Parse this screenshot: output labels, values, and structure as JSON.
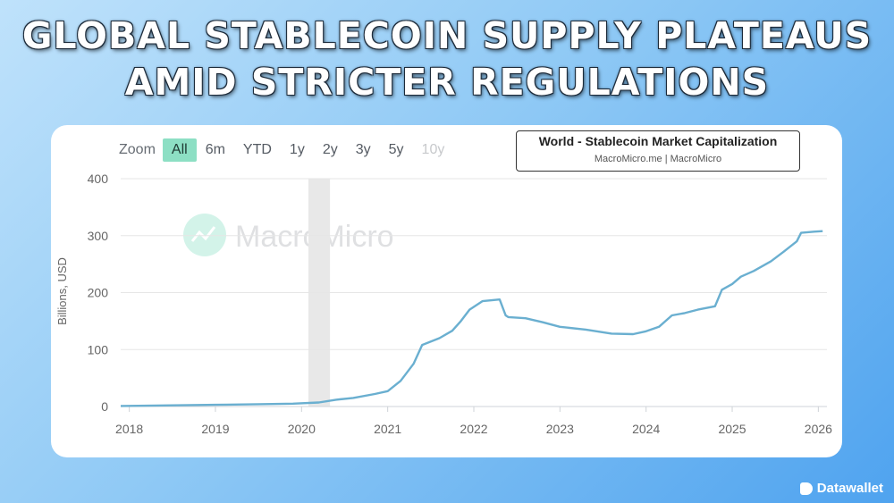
{
  "headline": {
    "line1": "GLOBAL STABLECOIN SUPPLY PLATEAUS",
    "line2": "AMID STRICTER REGULATIONS"
  },
  "zoom": {
    "label": "Zoom",
    "buttons": [
      "All",
      "6m",
      "YTD",
      "1y",
      "2y",
      "3y",
      "5y",
      "10y"
    ],
    "active": "All",
    "disabled": [
      "10y"
    ]
  },
  "legend": {
    "title": "World - Stablecoin Market Capitalization",
    "source": "MacroMicro.me | MacroMicro"
  },
  "watermark": "MacroMicro",
  "brand": "Datawallet",
  "colors": {
    "line": "#6aafd0",
    "shade": "#e8e8e8",
    "grid": "#e6e6e6",
    "active_button": "#8ddfc4",
    "watermark": "#9ee6cf"
  },
  "chart_data": {
    "type": "line",
    "ylabel": "Billions, USD",
    "ylim": [
      0,
      400
    ],
    "y_ticks": [
      "0",
      "100",
      "200",
      "300",
      "400"
    ],
    "xlim": [
      2017.9,
      2026.1
    ],
    "x_ticks": [
      "2018",
      "2019",
      "2020",
      "2021",
      "2022",
      "2023",
      "2024",
      "2025",
      "2026"
    ],
    "shaded_period": [
      2020.08,
      2020.33
    ],
    "series": [
      {
        "x": [
          2017.9,
          2018.5,
          2019.0,
          2019.5,
          2019.9,
          2020.2,
          2020.4,
          2020.6,
          2020.85,
          2021.0,
          2021.15,
          2021.3,
          2021.4,
          2021.6,
          2021.75,
          2021.85,
          2021.95,
          2022.1,
          2022.3,
          2022.37,
          2022.4,
          2022.6,
          2022.8,
          2023.0,
          2023.3,
          2023.6,
          2023.85,
          2024.0,
          2024.15,
          2024.3,
          2024.45,
          2024.6,
          2024.8,
          2024.88,
          2025.0,
          2025.1,
          2025.25,
          2025.45,
          2025.6,
          2025.75,
          2025.8,
          2025.95,
          2026.05
        ],
        "y": [
          1,
          2,
          3,
          4,
          5,
          7,
          12,
          15,
          22,
          27,
          45,
          75,
          108,
          120,
          133,
          150,
          170,
          185,
          188,
          160,
          157,
          155,
          148,
          140,
          135,
          128,
          127,
          132,
          140,
          160,
          164,
          170,
          176,
          205,
          215,
          228,
          238,
          255,
          272,
          290,
          305,
          307,
          308
        ]
      }
    ]
  }
}
